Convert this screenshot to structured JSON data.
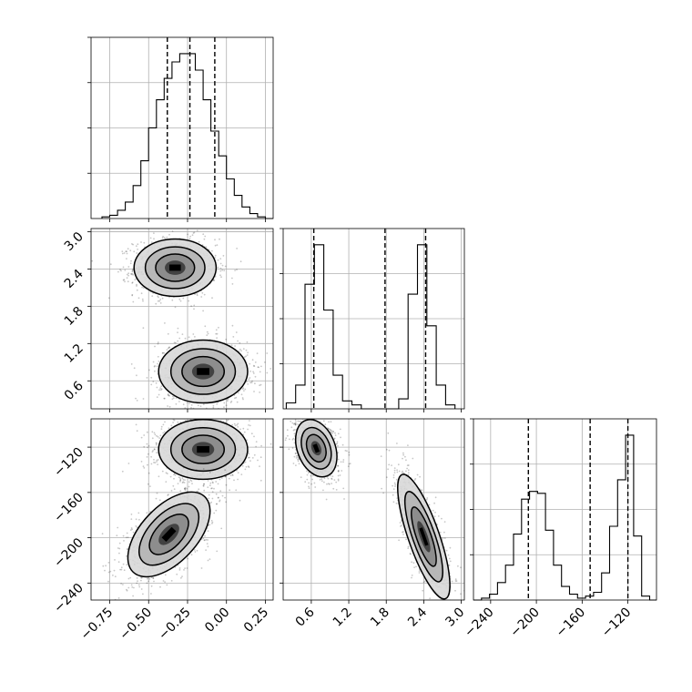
{
  "chart_data": {
    "type": "corner",
    "grid": true,
    "params": [
      {
        "range": [
          -0.87,
          0.3
        ],
        "ticks": [
          -0.75,
          -0.5,
          -0.25,
          0.0,
          0.25
        ],
        "tick_labels": [
          "−0.75",
          "−0.50",
          "−0.25",
          "0.00",
          "0.25"
        ]
      },
      {
        "range": [
          0.15,
          3.05
        ],
        "ticks": [
          0.6,
          1.2,
          1.8,
          2.4,
          3.0
        ],
        "tick_labels": [
          "0.6",
          "1.2",
          "1.8",
          "2.4",
          "3.0"
        ]
      },
      {
        "range": [
          -255,
          -95
        ],
        "ticks": [
          -240,
          -200,
          -160,
          -120
        ],
        "tick_labels": [
          "−240",
          "−200",
          "−160",
          "−120"
        ]
      }
    ],
    "histograms": [
      {
        "param": 0,
        "bins": [
          -0.8,
          -0.75,
          -0.7,
          -0.65,
          -0.6,
          -0.55,
          -0.5,
          -0.45,
          -0.4,
          -0.35,
          -0.3,
          -0.25,
          -0.2,
          -0.15,
          -0.1,
          -0.05,
          0.0,
          0.05,
          0.1,
          0.15,
          0.2,
          0.25,
          0.3
        ],
        "counts": [
          0.01,
          0.02,
          0.05,
          0.1,
          0.2,
          0.35,
          0.55,
          0.72,
          0.85,
          0.95,
          1.0,
          1.0,
          0.9,
          0.72,
          0.53,
          0.38,
          0.24,
          0.14,
          0.07,
          0.03,
          0.01,
          0.0
        ],
        "quantiles": [
          -0.38,
          -0.235,
          -0.075
        ]
      },
      {
        "param": 1,
        "bins": [
          0.2,
          0.35,
          0.5,
          0.65,
          0.8,
          0.95,
          1.1,
          1.25,
          1.4,
          1.55,
          1.7,
          1.85,
          2.0,
          2.15,
          2.3,
          2.45,
          2.6,
          2.75,
          2.9
        ],
        "counts": [
          0.03,
          0.12,
          0.63,
          0.83,
          0.5,
          0.17,
          0.04,
          0.02,
          0.0,
          0.0,
          0.0,
          0.0,
          0.05,
          0.58,
          0.83,
          0.42,
          0.12,
          0.02
        ],
        "quantiles": [
          0.64,
          1.78,
          2.43
        ]
      },
      {
        "param": 2,
        "bins": [
          -255,
          -248,
          -241,
          -234,
          -227,
          -220,
          -213,
          -206,
          -199,
          -192,
          -185,
          -178,
          -171,
          -164,
          -157,
          -150,
          -143,
          -136,
          -129,
          -122,
          -115,
          -108,
          -101,
          -95
        ],
        "counts": [
          0.0,
          0.01,
          0.03,
          0.09,
          0.18,
          0.34,
          0.52,
          0.56,
          0.55,
          0.36,
          0.18,
          0.07,
          0.03,
          0.01,
          0.02,
          0.04,
          0.14,
          0.38,
          0.62,
          0.85,
          0.33,
          0.02,
          0.0
        ],
        "quantiles": [
          -207,
          -153,
          -120
        ]
      }
    ],
    "scatter_2d": [
      {
        "x_param": 0,
        "y_param": 1,
        "modes": [
          {
            "center": [
              -0.33,
              2.42
            ],
            "spread": [
              0.24,
              0.42
            ]
          },
          {
            "center": [
              -0.15,
              0.75
            ],
            "spread": [
              0.26,
              0.46
            ]
          }
        ]
      },
      {
        "x_param": 0,
        "y_param": 2,
        "modes": [
          {
            "center": [
              -0.15,
              -122
            ],
            "spread": [
              0.26,
              24
            ]
          },
          {
            "center": [
              -0.37,
              -197
            ],
            "spread": [
              0.24,
              34
            ],
            "correlation": 0.55
          }
        ]
      },
      {
        "x_param": 1,
        "y_param": 2,
        "modes": [
          {
            "center": [
              0.68,
              -121
            ],
            "spread": [
              0.3,
              23
            ],
            "correlation": -0.3
          },
          {
            "center": [
              2.4,
              -199
            ],
            "spread": [
              0.38,
              50
            ],
            "correlation": -0.78
          }
        ]
      }
    ]
  }
}
